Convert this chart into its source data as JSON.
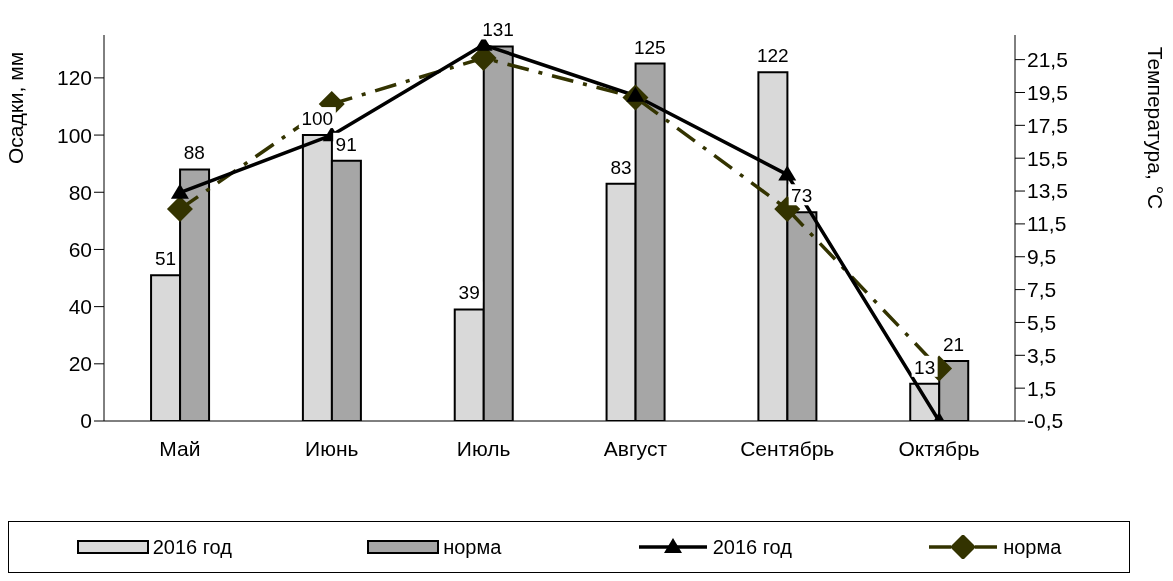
{
  "chart_data": {
    "type": "bar",
    "ylabel": "Осадки, мм",
    "y2label": "Температура, °C",
    "categories": [
      "Май",
      "Июнь",
      "Июль",
      "Август",
      "Сентябрь",
      "Октябрь"
    ],
    "series": [
      {
        "name": "2016 год",
        "color": "#d9d9d9",
        "values": [
          51,
          100,
          39,
          83,
          122,
          13
        ],
        "data_labels": true
      },
      {
        "name": "норма",
        "color": "#a6a6a6",
        "values": [
          88,
          91,
          131,
          125,
          73,
          21
        ],
        "data_labels": true
      },
      {
        "name": "2016 год",
        "type": "line",
        "axis": "y2",
        "color": "#000000",
        "marker": "triangle",
        "line_style": "solid",
        "values": [
          13.4,
          16.9,
          22.4,
          19.3,
          14.5,
          -0.5
        ]
      },
      {
        "name": "норма",
        "type": "line",
        "axis": "y2",
        "color": "#333300",
        "marker": "diamond",
        "line_style": "dashed",
        "values": [
          12.4,
          18.8,
          21.6,
          19.2,
          12.4,
          2.7
        ]
      }
    ],
    "ylim": [
      0,
      135
    ],
    "yticks": [
      0,
      20,
      40,
      60,
      80,
      100,
      120
    ],
    "y2lim": [
      -0.5,
      23
    ],
    "y2ticks": [
      {
        "value": -0.5,
        "label": "-0,5"
      },
      {
        "value": 1.5,
        "label": "1,5"
      },
      {
        "value": 3.5,
        "label": "3,5"
      },
      {
        "value": 5.5,
        "label": "5,5"
      },
      {
        "value": 7.5,
        "label": "7,5"
      },
      {
        "value": 9.5,
        "label": "9,5"
      },
      {
        "value": 11.5,
        "label": "11,5"
      },
      {
        "value": 13.5,
        "label": "13,5"
      },
      {
        "value": 15.5,
        "label": "15,5"
      },
      {
        "value": 17.5,
        "label": "17,5"
      },
      {
        "value": 19.5,
        "label": "19,5"
      },
      {
        "value": 21.5,
        "label": "21,5"
      }
    ],
    "grid": false,
    "legend": "bottom"
  }
}
